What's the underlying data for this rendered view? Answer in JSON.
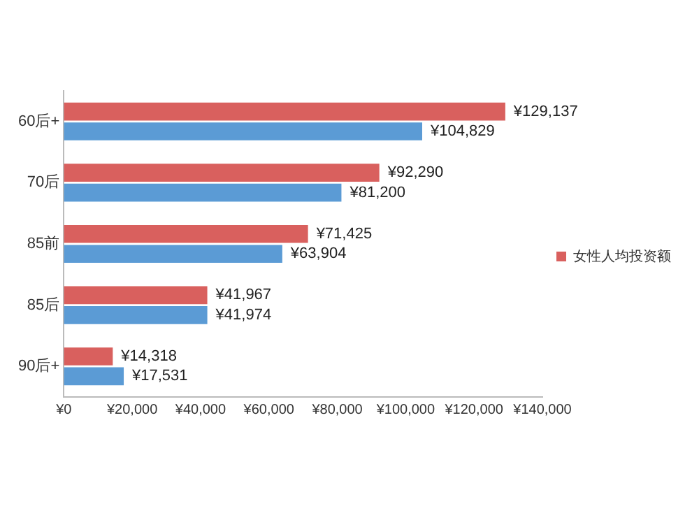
{
  "chart_data": {
    "type": "bar",
    "orientation": "horizontal",
    "categories": [
      "60后+",
      "70后",
      "85前",
      "85后",
      "90后+"
    ],
    "series": [
      {
        "name": "女性人均投资额",
        "color": "#d9605e",
        "values": [
          129137,
          92290,
          71425,
          41967,
          14318
        ],
        "value_labels": [
          "¥129,137",
          "¥92,290",
          "¥71,425",
          "¥41,967",
          "¥14,318"
        ]
      },
      {
        "color": "#5b9bd5",
        "values": [
          104829,
          81200,
          63904,
          41974,
          17531
        ],
        "value_labels": [
          "¥104,829",
          "¥81,200",
          "¥63,904",
          "¥41,974",
          "¥17,531"
        ]
      }
    ],
    "xlim": [
      0,
      140000
    ],
    "xticks": [
      {
        "value": 0,
        "label": "¥0"
      },
      {
        "value": 20000,
        "label": "¥20,000"
      },
      {
        "value": 40000,
        "label": "¥40,000"
      },
      {
        "value": 60000,
        "label": "¥60,000"
      },
      {
        "value": 80000,
        "label": "¥80,000"
      },
      {
        "value": 100000,
        "label": "¥100,000"
      },
      {
        "value": 120000,
        "label": "¥120,000"
      },
      {
        "value": 140000,
        "label": "¥140,000"
      }
    ],
    "grid": false,
    "legend": "right"
  }
}
